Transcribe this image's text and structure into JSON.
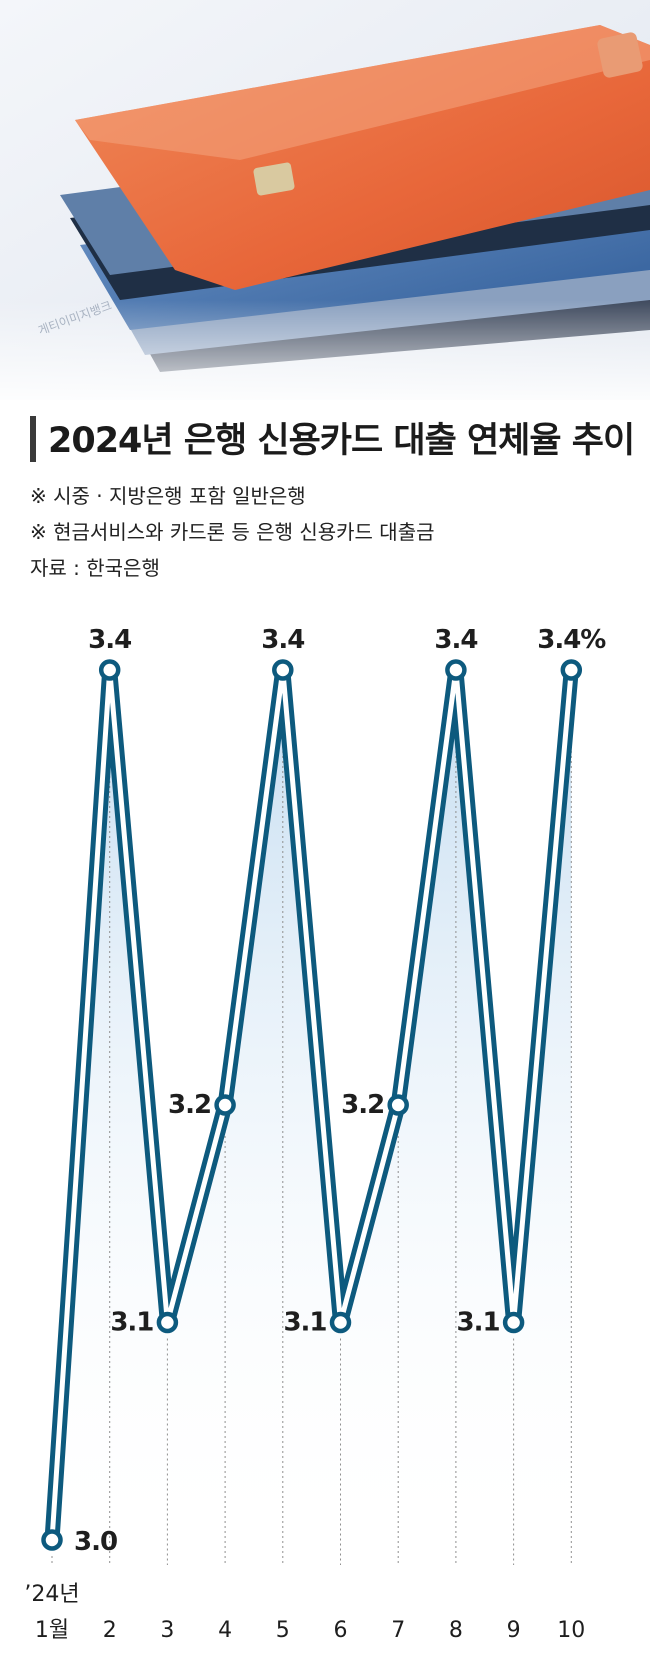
{
  "photo": {
    "credit": "게티이미지뱅크"
  },
  "header": {
    "title": "2024년 은행 신용카드 대출 연체율 추이",
    "notes": [
      "※ 시중 · 지방은행 포함 일반은행",
      "※ 현금서비스와 카드론 등 은행 신용카드 대출금"
    ],
    "source": "자료 : 한국은행"
  },
  "chart_data": {
    "type": "line",
    "title": "2024년 은행 신용카드 대출 연체율 추이",
    "categories": [
      "’24년 1월",
      "2",
      "3",
      "4",
      "5",
      "6",
      "7",
      "8",
      "9",
      "10"
    ],
    "tick_labels": [
      "1월",
      "2",
      "3",
      "4",
      "5",
      "6",
      "7",
      "8",
      "9",
      "10"
    ],
    "year_label": "’24년",
    "series": [
      {
        "values": [
          3.0,
          3.4,
          3.1,
          3.2,
          3.4,
          3.1,
          3.2,
          3.4,
          3.1,
          3.4
        ]
      }
    ],
    "data_labels": [
      "3.0",
      "3.4",
      "3.1",
      "3.2",
      "3.4",
      "3.1",
      "3.2",
      "3.4",
      "3.1",
      "3.4%"
    ],
    "unit": "%",
    "ylim": [
      3.0,
      3.4
    ],
    "grid": false,
    "colors": {
      "line": "#0d5a7e",
      "fill": "#c7dff0",
      "marker_fill": "#ffffff"
    }
  }
}
